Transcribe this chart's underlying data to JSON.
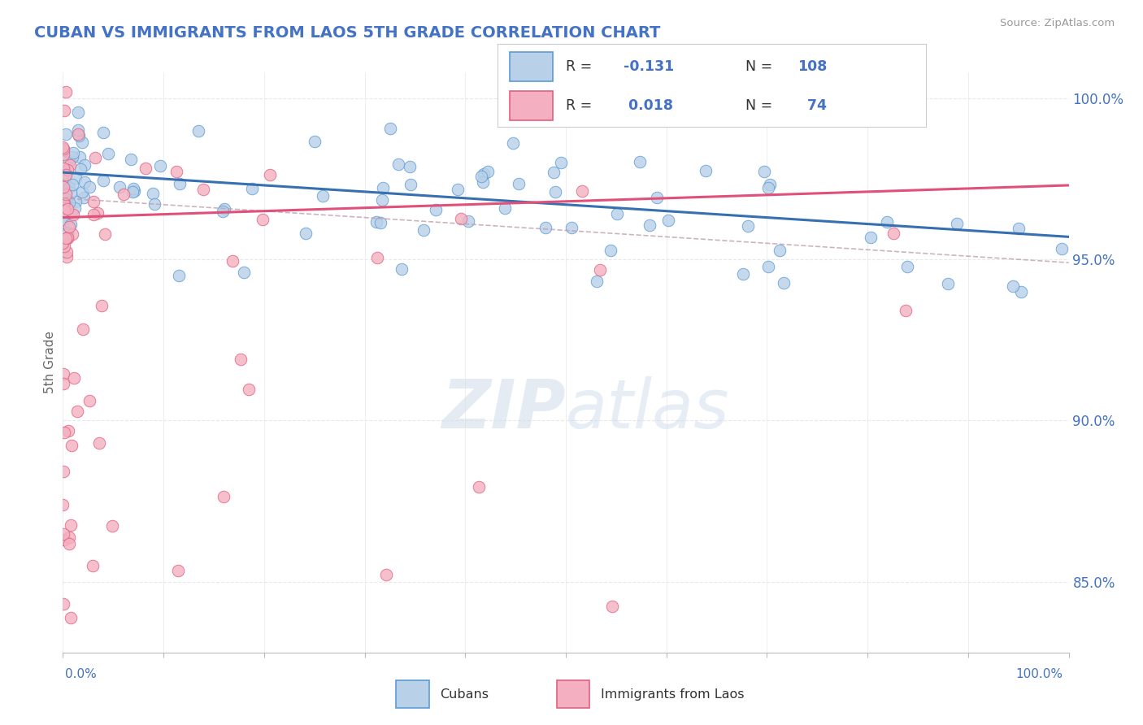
{
  "title": "CUBAN VS IMMIGRANTS FROM LAOS 5TH GRADE CORRELATION CHART",
  "source": "Source: ZipAtlas.com",
  "ylabel": "5th Grade",
  "legend_cubans": "Cubans",
  "legend_laos": "Immigrants from Laos",
  "r_cubans": -0.131,
  "n_cubans": 108,
  "r_laos": 0.018,
  "n_laos": 74,
  "xlim": [
    0.0,
    1.0
  ],
  "ylim": [
    0.828,
    1.008
  ],
  "yticks": [
    0.85,
    0.9,
    0.95,
    1.0
  ],
  "ytick_labels": [
    "85.0%",
    "90.0%",
    "95.0%",
    "100.0%"
  ],
  "color_cubans_fill": "#b8d0e8",
  "color_cubans_edge": "#5b9bd5",
  "color_laos_fill": "#f4b0c0",
  "color_laos_edge": "#e06080",
  "color_trendline_cubans": "#3670b0",
  "color_trendline_laos": "#e0507a",
  "color_ci_dashed": "#c0a0b0",
  "background_color": "#ffffff",
  "title_color": "#4472c4",
  "axis_label_color": "#4472c4",
  "grid_color": "#e8e8e8",
  "watermark_color": "#d0dce8",
  "legend_r_color": "#333333",
  "legend_n_color": "#4472c4"
}
